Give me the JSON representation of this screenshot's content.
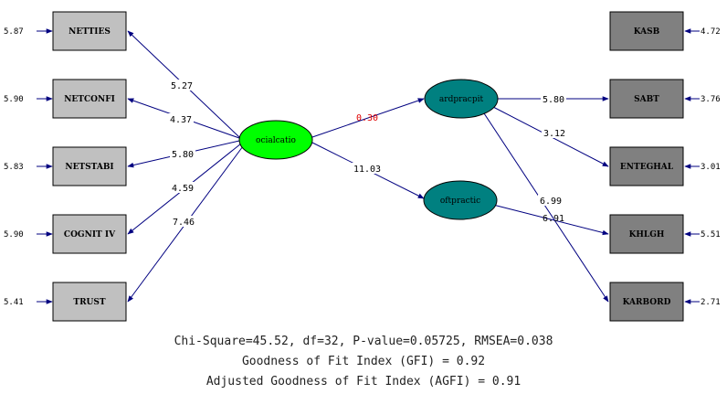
{
  "left_boxes": [
    {
      "label": "NETTIES",
      "error": "5.87",
      "coef": "5.27"
    },
    {
      "label": "NETCONFI",
      "error": "5.90",
      "coef": "4.37"
    },
    {
      "label": "NETSTABI",
      "error": "5.83",
      "coef": "5.80"
    },
    {
      "label": "COGNIT IV",
      "error": "5.90",
      "coef": "4.59"
    },
    {
      "label": "TRUST",
      "error": "5.41",
      "coef": "7.46"
    }
  ],
  "right_boxes": [
    {
      "label": "KASB",
      "error": "4.72"
    },
    {
      "label": "SABT",
      "error": "3.76"
    },
    {
      "label": "ENTEGHAL",
      "error": "3.01"
    },
    {
      "label": "KHLGH",
      "error": "5.51"
    },
    {
      "label": "KARBORD",
      "error": "2.71"
    }
  ],
  "latents": {
    "social": "ocialcatio",
    "hard": "ardpracpit",
    "soft": "oftpractic"
  },
  "path_coefs": {
    "social_hard": "0.30",
    "social_soft": "11.03",
    "hard_sabt": "5.80",
    "hard_enteghal": "3.12",
    "hard_karbord": "6.99",
    "soft_khlgh": "6.91"
  },
  "colors": {
    "left_box_fill": "#c0c0c0",
    "right_box_fill": "#808080",
    "social_fill": "#00ff00",
    "practice_fill": "#008080",
    "arrow": "#000080",
    "highlight_coef": "#e00000"
  },
  "fit": {
    "line1": "Chi-Square=45.52, df=32, P-value=0.05725, RMSEA=0.038",
    "line2": "Goodness of Fit Index (GFI) = 0.92",
    "line3": "Adjusted Goodness of Fit Index (AGFI) = 0.91"
  }
}
